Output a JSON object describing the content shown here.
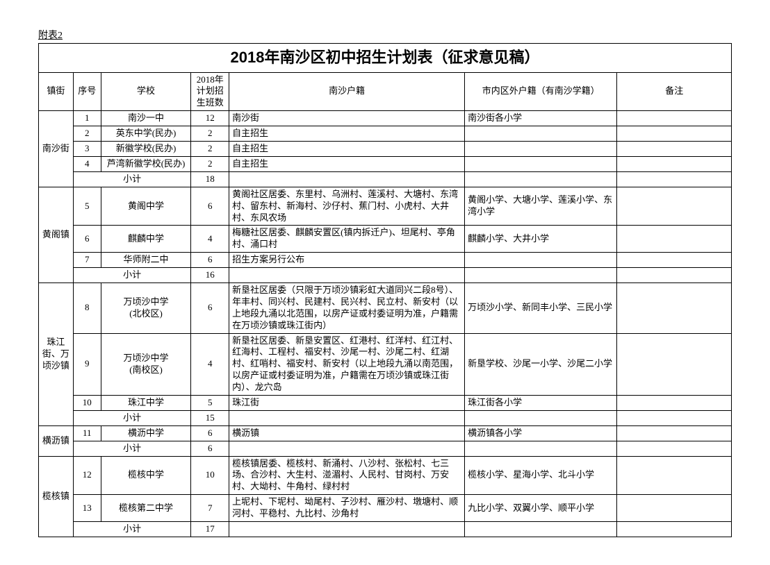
{
  "attach_label": "附表2",
  "title": "2018年南沙区初中招生计划表（征求意见稿）",
  "headers": {
    "town": "镇街",
    "seq": "序号",
    "school": "学校",
    "plan": "2018年计划招生班数",
    "nansha_hukou": "南沙户籍",
    "city_hukou": "市内区外户籍（有南沙学籍）",
    "note": "备注"
  },
  "subtotal_label": "小计",
  "blocks": [
    {
      "town": "南沙街",
      "rows": [
        {
          "seq": "1",
          "school": "南沙一中",
          "plan": "12",
          "nansha": "南沙街",
          "city": "南沙街各小学",
          "note": ""
        },
        {
          "seq": "2",
          "school": "英东中学(民办)",
          "plan": "2",
          "nansha": "自主招生",
          "city": "",
          "note": ""
        },
        {
          "seq": "3",
          "school": "新徽学校(民办)",
          "plan": "2",
          "nansha": "自主招生",
          "city": "",
          "note": ""
        },
        {
          "seq": "4",
          "school": "芦湾新徽学校(民办)",
          "plan": "2",
          "nansha": "自主招生",
          "city": "",
          "note": ""
        }
      ],
      "subtotal": "18"
    },
    {
      "town": "黄阁镇",
      "rows": [
        {
          "seq": "5",
          "school": "黄阁中学",
          "plan": "6",
          "nansha": "黄阁社区居委、东里村、乌洲村、莲溪村、大塘村、东湾村、留东村、新海村、沙仔村、蕉门村、小虎村、大井村、东风农场",
          "city": "黄阁小学、大塘小学、莲溪小学、东湾小学",
          "note": ""
        },
        {
          "seq": "6",
          "school": "麒麟中学",
          "plan": "4",
          "nansha": "梅糖社区居委、麒麟安置区(镇内拆迁户)、坦尾村、亭角村、涌口村",
          "city": "麒麟小学、大井小学",
          "note": ""
        },
        {
          "seq": "7",
          "school": "华师附二中",
          "plan": "6",
          "nansha": "招生方案另行公布",
          "city": "",
          "note": ""
        }
      ],
      "subtotal": "16"
    },
    {
      "town": "珠江街、万顷沙镇",
      "rows": [
        {
          "seq": "8",
          "school": "万顷沙中学\n(北校区)",
          "plan": "6",
          "nansha": "新垦社区居委（只限于万顷沙镇彩虹大道同兴二段8号）、年丰村、同兴村、民建村、民兴村、民立村、新安村（以上地段九涌以北范围，以房产证或村委证明为准，户籍需在万顷沙镇或珠江街内）",
          "city": "万顷沙小学、新同丰小学、三民小学",
          "note": ""
        },
        {
          "seq": "9",
          "school": "万顷沙中学\n(南校区)",
          "plan": "4",
          "nansha": "新垦社区居委、新垦安置区、红港村、红洋村、红江村、红海村、工程村、福安村、沙尾一村、沙尾二村、红湖村、红哨村、福安村、新安村（以上地段九涌以南范围，以房产证或村委证明为准，户籍需在万顷沙镇或珠江街内）、龙穴岛",
          "city": "新垦学校、沙尾一小学、沙尾二小学",
          "note": ""
        },
        {
          "seq": "10",
          "school": "珠江中学",
          "plan": "5",
          "nansha": "珠江街",
          "city": "珠江街各小学",
          "note": ""
        }
      ],
      "subtotal": "15"
    },
    {
      "town": "横沥镇",
      "rows": [
        {
          "seq": "11",
          "school": "横沥中学",
          "plan": "6",
          "nansha": "横沥镇",
          "city": "横沥镇各小学",
          "note": ""
        }
      ],
      "subtotal": "6"
    },
    {
      "town": "榄核镇",
      "rows": [
        {
          "seq": "12",
          "school": "榄核中学",
          "plan": "10",
          "nansha": "榄核镇居委、榄核村、新涌村、八沙村、张松村、七三场、合沙村、大生村、湴湄村、人民村、甘岗村、万安村、大坳村、牛角村、绿村村",
          "city": "榄核小学、星海小学、北斗小学",
          "note": ""
        },
        {
          "seq": "13",
          "school": "榄核第二中学",
          "plan": "7",
          "nansha": "上坭村、下坭村、坳尾村、子沙村、雁沙村、墩塘村、顺河村、平稳村、九比村、沙角村",
          "city": "九比小学、双翼小学、顺平小学",
          "note": ""
        }
      ],
      "subtotal": "17"
    }
  ]
}
